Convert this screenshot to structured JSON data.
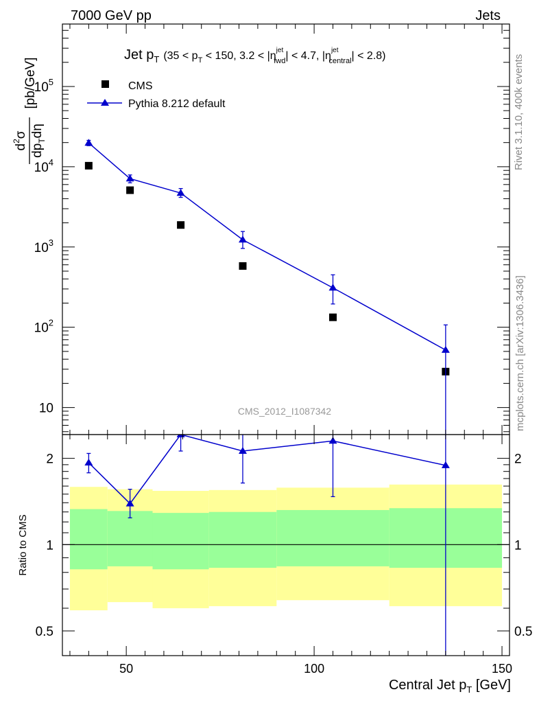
{
  "header": {
    "left": "7000 GeV pp",
    "right": "Jets"
  },
  "side_labels": {
    "rivet": "Rivet 3.1.10,  400k events",
    "mcplots": "mcplots.cern.ch [arXiv:1306.3436]"
  },
  "watermark": "CMS_2012_I1087342",
  "title_parts": {
    "main": "Jet p",
    "main_sub": "T",
    "a": "(35 < p",
    "a_sub": "T",
    "b": " < 150, 3.2 < |η",
    "b_sup": "jet",
    "b_sub": "fwd",
    "c": "| < 4.7, |η",
    "c_sup": "jet",
    "c_sub": "central",
    "d": "| < 2.8)"
  },
  "ylabel_top": {
    "d2": "d",
    "d2_sup": "2",
    "sigma": "σ",
    "den": "dp",
    "den_sub": "T",
    "den2": "dη",
    "unit": "[pb/GeV]"
  },
  "ylabel_bottom": "Ratio to CMS",
  "xlabel": {
    "main": "Central Jet p",
    "sub": "T",
    "unit": " [GeV]"
  },
  "legend": {
    "data": "CMS",
    "mc": "Pythia 8.212 default"
  },
  "colors": {
    "mc": "#0000cc",
    "yellow": "#ffff99",
    "green": "#99ff99",
    "data": "#000000"
  },
  "chart_data": [
    {
      "type": "scatter",
      "scale": "log-y",
      "xlim": [
        33,
        152
      ],
      "ylim": [
        4.6,
        600000
      ],
      "x_ticks": [
        50,
        100,
        150
      ],
      "y_ticks": [
        {
          "v": 10,
          "base": "10",
          "exp": ""
        },
        {
          "v": 100,
          "base": "10",
          "exp": "2"
        },
        {
          "v": 1000,
          "base": "10",
          "exp": "3"
        },
        {
          "v": 10000,
          "base": "10",
          "exp": "4"
        },
        {
          "v": 100000,
          "base": "10",
          "exp": "5"
        }
      ],
      "series": [
        {
          "name": "CMS",
          "x": [
            40,
            51,
            64.5,
            81,
            105,
            135
          ],
          "y": [
            10300,
            5100,
            1880,
            580,
            133,
            28
          ]
        },
        {
          "name": "Pythia 8.212 default",
          "x": [
            40,
            51,
            64.5,
            81,
            105,
            135
          ],
          "y": [
            19800,
            7100,
            4700,
            1230,
            310,
            52
          ],
          "err_low": [
            18300,
            6300,
            4150,
            960,
            195,
            0.01
          ],
          "err_high": [
            21300,
            7900,
            5350,
            1560,
            450,
            107
          ]
        }
      ]
    },
    {
      "type": "scatter",
      "scale": "log-y",
      "xlim": [
        33,
        152
      ],
      "ylim": [
        0.41,
        2.42
      ],
      "y_ticks": [
        {
          "v": 0.5,
          "label": "0.5"
        },
        {
          "v": 1,
          "label": "1"
        },
        {
          "v": 2,
          "label": "2"
        }
      ],
      "bands": [
        {
          "x0": 35,
          "x1": 45,
          "yellow": [
            0.59,
            1.59
          ],
          "green": [
            0.82,
            1.33
          ]
        },
        {
          "x0": 45,
          "x1": 57,
          "yellow": [
            0.63,
            1.56
          ],
          "green": [
            0.84,
            1.31
          ]
        },
        {
          "x0": 57,
          "x1": 72,
          "yellow": [
            0.6,
            1.54
          ],
          "green": [
            0.82,
            1.29
          ]
        },
        {
          "x0": 72,
          "x1": 90,
          "yellow": [
            0.61,
            1.55
          ],
          "green": [
            0.83,
            1.3
          ]
        },
        {
          "x0": 90,
          "x1": 120,
          "yellow": [
            0.64,
            1.58
          ],
          "green": [
            0.84,
            1.32
          ]
        },
        {
          "x0": 120,
          "x1": 150,
          "yellow": [
            0.61,
            1.62
          ],
          "green": [
            0.83,
            1.34
          ]
        }
      ],
      "series": [
        {
          "name": "Pythia 8.212 default",
          "x": [
            40,
            51,
            64.5,
            81,
            105,
            135
          ],
          "y": [
            1.93,
            1.39,
            2.42,
            2.12,
            2.3,
            1.89
          ],
          "err_low": [
            1.78,
            1.24,
            2.12,
            1.64,
            1.47,
            0.01
          ],
          "err_high": [
            2.08,
            1.56,
            2.7,
            2.6,
            3.2,
            3.9
          ]
        }
      ]
    }
  ]
}
